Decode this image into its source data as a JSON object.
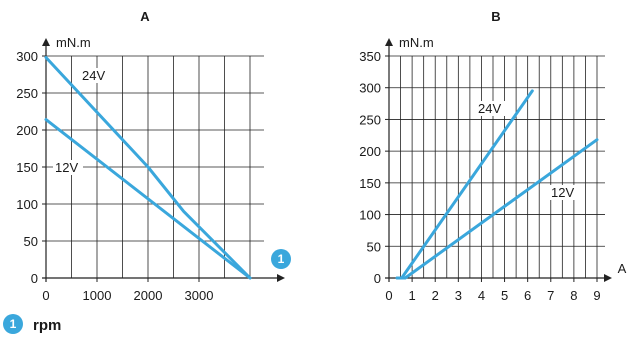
{
  "colors": {
    "series": "#3aa7dc",
    "grid": "#222222",
    "callout": "#3aa7dc"
  },
  "callout_number": "1",
  "legend": {
    "label": "rpm"
  },
  "chart_data": [
    {
      "type": "line",
      "title": "A",
      "ylabel": "mN.m",
      "xlabel": "",
      "x_ticks": [
        "0",
        "1000",
        "2000",
        "3000"
      ],
      "x_tick_values": [
        0,
        1000,
        2000,
        3000
      ],
      "y_ticks": [
        "0",
        "50",
        "100",
        "150",
        "200",
        "250",
        "300"
      ],
      "y_tick_values": [
        0,
        50,
        100,
        150,
        200,
        250,
        300
      ],
      "xlim": [
        0,
        4000
      ],
      "ylim": [
        0,
        300
      ],
      "grid": true,
      "series": [
        {
          "name": "24V",
          "x": [
            0,
            2000,
            2700,
            4000
          ],
          "y": [
            298,
            150,
            90,
            0
          ]
        },
        {
          "name": "12V",
          "x": [
            0,
            4000
          ],
          "y": [
            214,
            0
          ]
        }
      ]
    },
    {
      "type": "line",
      "title": "B",
      "ylabel": "mN.m",
      "xlabel": "A",
      "x_ticks": [
        "0",
        "1",
        "2",
        "3",
        "4",
        "5",
        "6",
        "7",
        "8",
        "9"
      ],
      "x_tick_values": [
        0,
        1,
        2,
        3,
        4,
        5,
        6,
        7,
        8,
        9
      ],
      "y_ticks": [
        "0",
        "50",
        "100",
        "150",
        "200",
        "250",
        "300",
        "350"
      ],
      "y_tick_values": [
        0,
        50,
        100,
        150,
        200,
        250,
        300,
        350
      ],
      "xlim": [
        0,
        9
      ],
      "ylim": [
        0,
        350
      ],
      "grid": true,
      "series": [
        {
          "name": "24V",
          "x": [
            0.35,
            0.55,
            6.2
          ],
          "y": [
            0,
            0,
            295
          ]
        },
        {
          "name": "12V",
          "x": [
            0.35,
            0.7,
            9
          ],
          "y": [
            0,
            0,
            218
          ]
        }
      ]
    }
  ]
}
